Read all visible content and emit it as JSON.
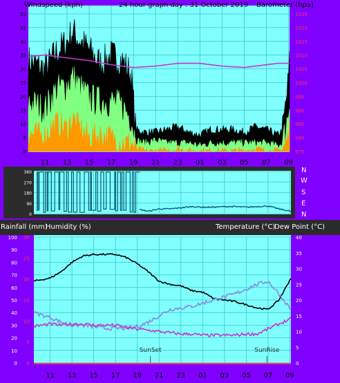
{
  "colors": {
    "frame": "#8000ff",
    "plot_bg": "#80ffff",
    "grid": "#3cc8c8",
    "wind_gust": "#000000",
    "wind_avg": "#80ff80",
    "wind_min": "#ff9900",
    "barometer": "#cc33cc",
    "direction": "#0a5a78",
    "temperature": "#000000",
    "dewpoint": "#8888dd",
    "humidity": "#cc33cc",
    "rain_axis": "#ff3366"
  },
  "top": {
    "title_left": "Windspeed (kph)",
    "title_center": "24 hour graph day : 31 October 2019",
    "title_right": "Barometer (hpa)"
  },
  "middle": {
    "compass": [
      "N",
      "W",
      "S",
      "E",
      "N"
    ]
  },
  "bottom": {
    "label_rain": "Rainfall (mm)",
    "label_humidity": "Humidity (%)",
    "label_temp": "Temperature (°C)",
    "label_dew": "Dew Point (°C)",
    "sunset_label": "SunSet",
    "sunrise_label": "SunRise"
  },
  "chart_data": [
    {
      "id": "wind",
      "type": "area",
      "title": "24 hour graph day : 31 October 2019",
      "xlabel": "",
      "ylabel": "Windspeed (kph)",
      "y2label": "Barometer (hpa)",
      "x_ticks": [
        "11",
        "13",
        "15",
        "17",
        "19",
        "21",
        "23",
        "01",
        "03",
        "05",
        "07",
        "09"
      ],
      "x_range_hours": [
        9.5,
        33.1
      ],
      "ylim": [
        0,
        50
      ],
      "y_ticks": [
        0,
        5,
        10,
        15,
        20,
        25,
        30,
        35,
        40,
        45,
        50
      ],
      "y2lim": [
        975,
        1025
      ],
      "y2_ticks": [
        975,
        980,
        985,
        990,
        995,
        1000,
        1005,
        1010,
        1015,
        1020,
        1025
      ],
      "x_hours": [
        9.5,
        11,
        12,
        13,
        13.5,
        14,
        15,
        16,
        17,
        18,
        18.8,
        19.2,
        20,
        21,
        22,
        23,
        24,
        25,
        26,
        27,
        28,
        29,
        30,
        31,
        32,
        32.5,
        33,
        33.1
      ],
      "series": [
        {
          "name": "gust",
          "values": [
            33,
            30,
            36,
            40,
            44,
            41,
            37,
            32,
            35,
            33,
            28,
            8,
            7,
            7,
            8,
            9,
            7,
            6,
            8,
            8,
            8,
            7,
            9,
            8,
            6,
            8,
            26,
            32
          ]
        },
        {
          "name": "average",
          "values": [
            18,
            15,
            22,
            24,
            27,
            24,
            19,
            18,
            18,
            16,
            12,
            4,
            3,
            4,
            3,
            3,
            3,
            2,
            3,
            3,
            3,
            3,
            3,
            3,
            2,
            3,
            14,
            18
          ]
        },
        {
          "name": "minimum",
          "values": [
            6,
            6,
            10,
            8,
            12,
            9,
            5,
            6,
            5,
            3,
            3,
            1,
            0,
            0,
            0,
            1,
            0,
            0,
            0,
            0,
            0,
            0,
            1,
            0,
            0,
            1,
            5,
            8
          ]
        }
      ],
      "barometer": {
        "x_hours": [
          9.5,
          11,
          13,
          15,
          17,
          19,
          21,
          23,
          25,
          27,
          29,
          31,
          32,
          33.1
        ],
        "values": [
          1009.5,
          1010,
          1009,
          1008,
          1006.5,
          1005.5,
          1006,
          1007,
          1007,
          1006,
          1005.5,
          1006.5,
          1007,
          1007
        ]
      },
      "grid": true
    },
    {
      "id": "direction",
      "type": "line",
      "x_range_hours": [
        9.5,
        33.1
      ],
      "ylim": [
        0,
        360
      ],
      "y_ticks": [
        0,
        90,
        180,
        270,
        360
      ],
      "x_hours": [
        19.2,
        20,
        21,
        22,
        23,
        24,
        25,
        26,
        27,
        28,
        29,
        30,
        31,
        32,
        33.1
      ],
      "values": [
        35,
        20,
        40,
        40,
        50,
        60,
        55,
        55,
        60,
        60,
        55,
        60,
        65,
        40,
        20
      ],
      "note_segments_before_19h": "rapid oscillation between 0 and 360"
    },
    {
      "id": "temp_hum",
      "type": "line",
      "x_ticks": [
        "11",
        "13",
        "15",
        "17",
        "19",
        "21",
        "23",
        "01",
        "03",
        "05",
        "07",
        "09"
      ],
      "x_range_hours": [
        9.5,
        33.1
      ],
      "ylim_left": [
        0,
        100
      ],
      "y_ticks_left": [
        0,
        10,
        20,
        30,
        40,
        50,
        60,
        70,
        80,
        90,
        100
      ],
      "rain_ticks": [
        0,
        5,
        10,
        15,
        20,
        25,
        30
      ],
      "ylim_right": [
        0,
        40
      ],
      "y_ticks_right": [
        0,
        5,
        10,
        15,
        20,
        25,
        30,
        35,
        40
      ],
      "series": [
        {
          "name": "Temperature (°C)",
          "x_hours": [
            9.5,
            11,
            12,
            13,
            14,
            15,
            16,
            17,
            18,
            19,
            20,
            21,
            22,
            23,
            24,
            25,
            26,
            27,
            28,
            29,
            30,
            31,
            32,
            33.1
          ],
          "values": [
            26,
            27,
            29,
            32,
            34,
            34.5,
            34.5,
            34.5,
            33.5,
            31.5,
            29,
            26,
            25,
            24.5,
            23,
            22.5,
            20.5,
            20,
            19.5,
            18.5,
            17.5,
            17,
            20,
            27
          ]
        },
        {
          "name": "Dew Point (°C)",
          "x_hours": [
            9.5,
            11,
            12,
            13,
            14,
            15,
            16,
            17,
            18,
            19,
            20,
            21,
            22,
            23,
            24,
            25,
            26,
            27,
            28,
            29,
            30,
            31,
            32,
            33.1
          ],
          "values": [
            16,
            14.5,
            13,
            12,
            12,
            11.5,
            11,
            11,
            11,
            11.5,
            13,
            15,
            17,
            17.5,
            18,
            19,
            20,
            21,
            22,
            23.5,
            25,
            26,
            22,
            17
          ]
        },
        {
          "name": "Humidity (%)",
          "x_hours": [
            9.5,
            11,
            12,
            13,
            14,
            15,
            16,
            17,
            18,
            19,
            20,
            21,
            22,
            23,
            24,
            25,
            26,
            27,
            28,
            29,
            30,
            31,
            32,
            33.1
          ],
          "values": [
            29,
            31,
            30,
            31,
            31,
            30,
            30,
            30,
            28,
            27,
            26,
            25,
            24,
            23,
            23,
            22,
            22,
            22,
            22,
            23,
            23,
            27,
            31,
            35
          ]
        }
      ],
      "sunset_hour": 20.2,
      "sunrise_hour": 30.9,
      "grid": true
    }
  ]
}
